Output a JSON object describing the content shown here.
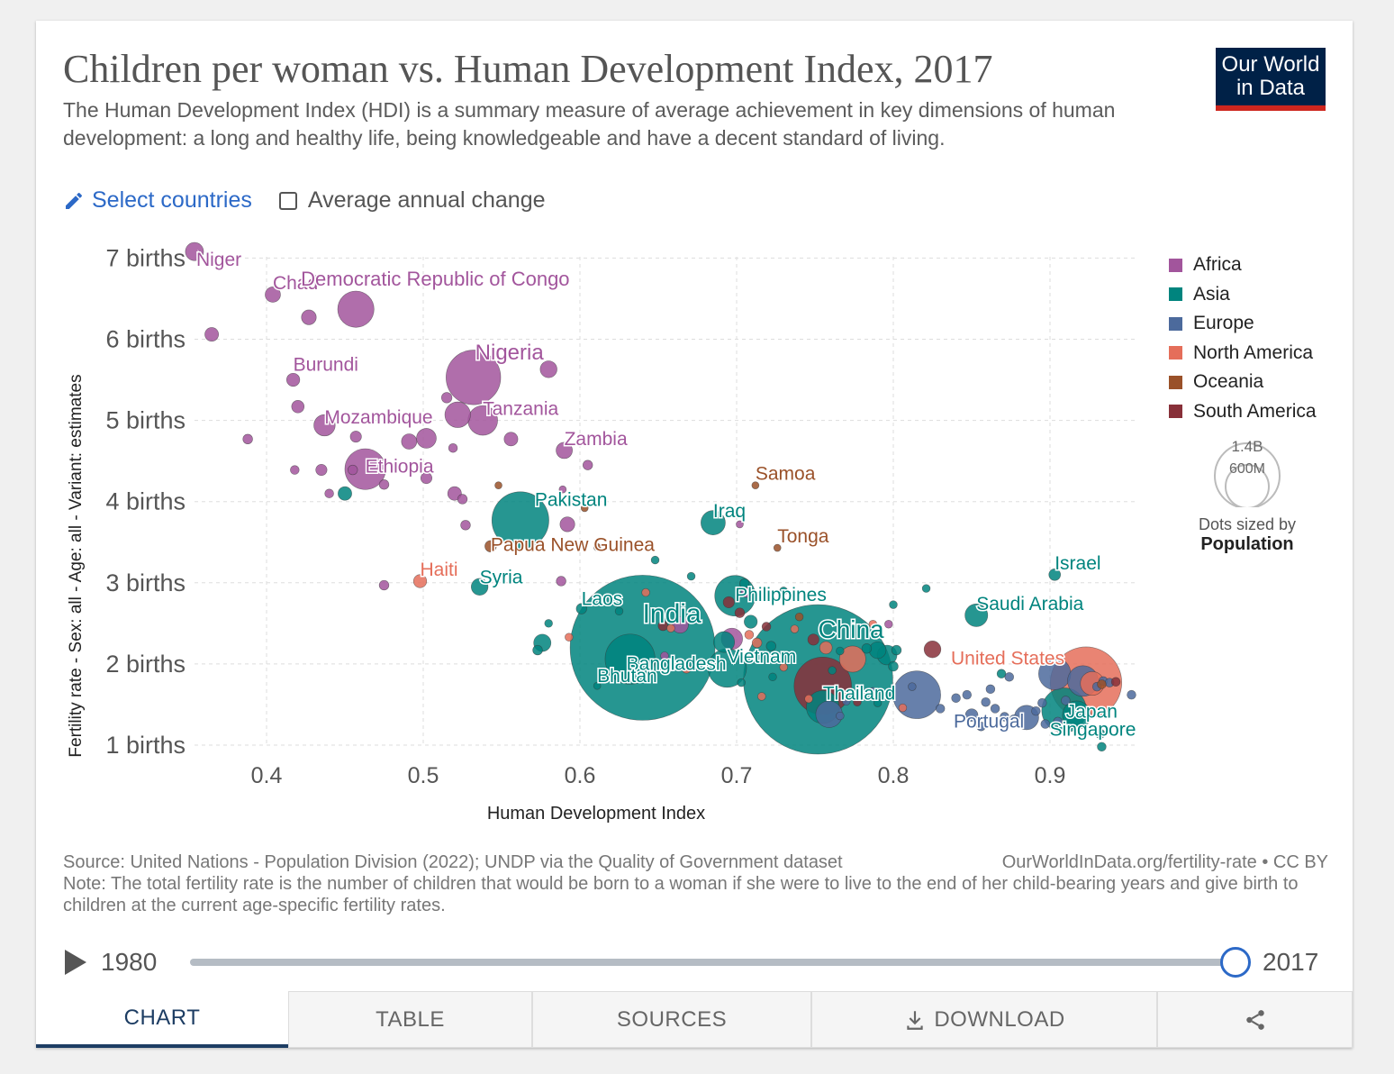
{
  "header": {
    "title": "Children per woman vs. Human Development Index, 2017",
    "subtitle": "The Human Development Index (HDI) is a summary measure of average achievement in key dimensions of human development: a long and healthy life, being knowledgeable and have a decent standard of living.",
    "logo_line1": "Our World",
    "logo_line2": "in Data"
  },
  "controls": {
    "select_countries": "Select countries",
    "average_change": "Average annual change",
    "average_change_checked": false
  },
  "colors": {
    "Africa": "#a2559c",
    "Asia": "#00847e",
    "Europe": "#4c6a9c",
    "North America": "#e56e5a",
    "Oceania": "#9a5129",
    "South America": "#883039"
  },
  "size_legend": {
    "big": "1.4B",
    "small": "600M",
    "sized_by": "Dots sized by",
    "measure": "Population"
  },
  "chart_data": {
    "type": "scatter",
    "xlabel": "Human Development Index",
    "ylabel": "Fertility rate - Sex: all - Age: all - Variant: estimates",
    "xlim": [
      0.35,
      0.96
    ],
    "ylim": [
      0.8,
      7.2
    ],
    "xticks": [
      0.4,
      0.5,
      0.6,
      0.7,
      0.8,
      0.9
    ],
    "xtick_labels": [
      "0.4",
      "0.5",
      "0.6",
      "0.7",
      "0.8",
      "0.9"
    ],
    "yticks": [
      1,
      2,
      3,
      4,
      5,
      6,
      7
    ],
    "ytick_labels": [
      "1 births",
      "2 births",
      "3 births",
      "4 births",
      "5 births",
      "6 births",
      "7 births"
    ],
    "grid": "dashed",
    "legend_position": "right",
    "series": [
      "Africa",
      "Asia",
      "Europe",
      "North America",
      "Oceania",
      "South America"
    ],
    "points": [
      {
        "label": "Niger",
        "x": 0.354,
        "y": 7.08,
        "pop": 21,
        "c": "Africa"
      },
      {
        "label": "Chad",
        "x": 0.404,
        "y": 6.55,
        "pop": 15,
        "c": "Africa"
      },
      {
        "label": "Democratic Republic of Congo",
        "x": 0.457,
        "y": 6.37,
        "pop": 84,
        "c": "Africa"
      },
      {
        "label": "Burundi",
        "x": 0.417,
        "y": 5.5,
        "pop": 11,
        "c": "Africa"
      },
      {
        "label": "Nigeria",
        "x": 0.532,
        "y": 5.53,
        "pop": 190,
        "c": "Africa"
      },
      {
        "label": "Tanzania",
        "x": 0.538,
        "y": 5.0,
        "pop": 56,
        "c": "Africa"
      },
      {
        "label": "Mozambique",
        "x": 0.437,
        "y": 4.94,
        "pop": 29,
        "c": "Africa"
      },
      {
        "label": "Ethiopia",
        "x": 0.463,
        "y": 4.4,
        "pop": 106,
        "c": "Africa"
      },
      {
        "label": "Zambia",
        "x": 0.59,
        "y": 4.63,
        "pop": 17,
        "c": "Africa"
      },
      {
        "label": "Samoa",
        "x": 0.712,
        "y": 4.2,
        "pop": 0.2,
        "c": "Oceania"
      },
      {
        "label": "Pakistan",
        "x": 0.562,
        "y": 3.77,
        "pop": 207,
        "c": "Asia"
      },
      {
        "label": "Iraq",
        "x": 0.685,
        "y": 3.74,
        "pop": 38,
        "c": "Asia"
      },
      {
        "label": "Papua New Guinea",
        "x": 0.543,
        "y": 3.45,
        "pop": 8.4,
        "c": "Oceania"
      },
      {
        "label": "Tonga",
        "x": 0.726,
        "y": 3.43,
        "pop": 0.1,
        "c": "Oceania"
      },
      {
        "label": "Israel",
        "x": 0.903,
        "y": 3.1,
        "pop": 8.7,
        "c": "Asia"
      },
      {
        "label": "Haiti",
        "x": 0.498,
        "y": 3.02,
        "pop": 11,
        "c": "North America"
      },
      {
        "label": "Syria",
        "x": 0.536,
        "y": 2.95,
        "pop": 18,
        "c": "Asia"
      },
      {
        "label": "Philippines",
        "x": 0.699,
        "y": 2.84,
        "pop": 105,
        "c": "Asia"
      },
      {
        "label": "Saudi Arabia",
        "x": 0.853,
        "y": 2.6,
        "pop": 33,
        "c": "Asia"
      },
      {
        "label": "Laos",
        "x": 0.601,
        "y": 2.68,
        "pop": 7,
        "c": "Asia"
      },
      {
        "label": "India",
        "x": 0.64,
        "y": 2.2,
        "pop": 1339,
        "c": "Asia"
      },
      {
        "label": "Bangladesh",
        "x": 0.632,
        "y": 2.06,
        "pop": 159,
        "c": "Asia"
      },
      {
        "label": "Bhutan",
        "x": 0.611,
        "y": 1.73,
        "pop": 0.8,
        "c": "Asia"
      },
      {
        "label": "Vietnam",
        "x": 0.694,
        "y": 1.95,
        "pop": 95,
        "c": "Asia"
      },
      {
        "label": "China",
        "x": 0.752,
        "y": 1.81,
        "pop": 1421,
        "c": "Asia"
      },
      {
        "label": "Thailand",
        "x": 0.755,
        "y": 1.47,
        "pop": 69,
        "c": "Asia"
      },
      {
        "label": "United States",
        "x": 0.923,
        "y": 1.77,
        "pop": 325,
        "c": "North America"
      },
      {
        "label": "Japan",
        "x": 0.909,
        "y": 1.43,
        "pop": 127,
        "c": "Asia"
      },
      {
        "label": "Portugal",
        "x": 0.85,
        "y": 1.37,
        "pop": 10,
        "c": "Europe"
      },
      {
        "label": "Singapore",
        "x": 0.932,
        "y": 1.14,
        "pop": 5.7,
        "c": "Asia"
      },
      {
        "label": "",
        "x": 0.365,
        "y": 6.06,
        "pop": 12,
        "c": "Africa"
      },
      {
        "label": "",
        "x": 0.427,
        "y": 6.27,
        "pop": 14,
        "c": "Africa"
      },
      {
        "label": "",
        "x": 0.58,
        "y": 5.63,
        "pop": 18,
        "c": "Africa"
      },
      {
        "label": "",
        "x": 0.388,
        "y": 4.77,
        "pop": 6,
        "c": "Africa"
      },
      {
        "label": "",
        "x": 0.522,
        "y": 5.07,
        "pop": 42,
        "c": "Africa"
      },
      {
        "label": "",
        "x": 0.502,
        "y": 4.78,
        "pop": 25,
        "c": "Africa"
      },
      {
        "label": "",
        "x": 0.42,
        "y": 5.17,
        "pop": 10,
        "c": "Africa"
      },
      {
        "label": "",
        "x": 0.515,
        "y": 5.28,
        "pop": 7,
        "c": "Africa"
      },
      {
        "label": "",
        "x": 0.457,
        "y": 4.8,
        "pop": 8,
        "c": "Africa"
      },
      {
        "label": "",
        "x": 0.556,
        "y": 4.77,
        "pop": 12,
        "c": "Africa"
      },
      {
        "label": "",
        "x": 0.491,
        "y": 4.74,
        "pop": 15,
        "c": "Africa"
      },
      {
        "label": "",
        "x": 0.519,
        "y": 4.66,
        "pop": 5,
        "c": "Africa"
      },
      {
        "label": "",
        "x": 0.418,
        "y": 4.39,
        "pop": 5,
        "c": "Africa"
      },
      {
        "label": "",
        "x": 0.435,
        "y": 4.39,
        "pop": 8,
        "c": "Africa"
      },
      {
        "label": "",
        "x": 0.455,
        "y": 4.39,
        "pop": 6,
        "c": "Africa"
      },
      {
        "label": "",
        "x": 0.475,
        "y": 4.21,
        "pop": 6,
        "c": "Africa"
      },
      {
        "label": "",
        "x": 0.502,
        "y": 4.29,
        "pop": 8,
        "c": "Africa"
      },
      {
        "label": "",
        "x": 0.605,
        "y": 4.45,
        "pop": 6,
        "c": "Africa"
      },
      {
        "label": "",
        "x": 0.589,
        "y": 4.15,
        "pop": 3,
        "c": "Africa"
      },
      {
        "label": "",
        "x": 0.44,
        "y": 4.1,
        "pop": 5,
        "c": "Africa"
      },
      {
        "label": "",
        "x": 0.52,
        "y": 4.1,
        "pop": 12,
        "c": "Africa"
      },
      {
        "label": "",
        "x": 0.525,
        "y": 4.03,
        "pop": 6,
        "c": "Africa"
      },
      {
        "label": "",
        "x": 0.45,
        "y": 4.1,
        "pop": 12,
        "c": "Asia"
      },
      {
        "label": "",
        "x": 0.527,
        "y": 3.71,
        "pop": 6,
        "c": "Africa"
      },
      {
        "label": "",
        "x": 0.592,
        "y": 3.72,
        "pop": 14,
        "c": "Africa"
      },
      {
        "label": "",
        "x": 0.588,
        "y": 3.02,
        "pop": 6,
        "c": "Africa"
      },
      {
        "label": "",
        "x": 0.475,
        "y": 2.97,
        "pop": 6,
        "c": "Africa"
      },
      {
        "label": "",
        "x": 0.548,
        "y": 4.2,
        "pop": 3,
        "c": "Oceania"
      },
      {
        "label": "",
        "x": 0.611,
        "y": 3.44,
        "pop": 3,
        "c": "Oceania"
      },
      {
        "label": "",
        "x": 0.603,
        "y": 3.92,
        "pop": 2,
        "c": "Oceania"
      },
      {
        "label": "",
        "x": 0.702,
        "y": 3.72,
        "pop": 2,
        "c": "Africa"
      },
      {
        "label": "",
        "x": 0.648,
        "y": 3.28,
        "pop": 4,
        "c": "Asia"
      },
      {
        "label": "",
        "x": 0.671,
        "y": 3.08,
        "pop": 4,
        "c": "Asia"
      },
      {
        "label": "",
        "x": 0.705,
        "y": 2.99,
        "pop": 6,
        "c": "Asia"
      },
      {
        "label": "",
        "x": 0.706,
        "y": 2.88,
        "pop": 6,
        "c": "Africa"
      },
      {
        "label": "",
        "x": 0.73,
        "y": 2.9,
        "pop": 4,
        "c": "Asia"
      },
      {
        "label": "",
        "x": 0.695,
        "y": 2.76,
        "pop": 8,
        "c": "South America"
      },
      {
        "label": "",
        "x": 0.702,
        "y": 2.63,
        "pop": 6,
        "c": "South America"
      },
      {
        "label": "",
        "x": 0.709,
        "y": 2.52,
        "pop": 11,
        "c": "Asia"
      },
      {
        "label": "",
        "x": 0.642,
        "y": 2.88,
        "pop": 4,
        "c": "North America"
      },
      {
        "label": "",
        "x": 0.625,
        "y": 2.65,
        "pop": 4,
        "c": "Asia"
      },
      {
        "label": "",
        "x": 0.58,
        "y": 2.5,
        "pop": 4,
        "c": "Asia"
      },
      {
        "label": "",
        "x": 0.576,
        "y": 2.26,
        "pop": 19,
        "c": "Asia"
      },
      {
        "label": "",
        "x": 0.573,
        "y": 2.17,
        "pop": 6,
        "c": "Asia"
      },
      {
        "label": "",
        "x": 0.593,
        "y": 2.33,
        "pop": 4,
        "c": "North America"
      },
      {
        "label": "",
        "x": 0.653,
        "y": 2.47,
        "pop": 6,
        "c": "South America"
      },
      {
        "label": "",
        "x": 0.658,
        "y": 2.44,
        "pop": 4,
        "c": "North America"
      },
      {
        "label": "",
        "x": 0.664,
        "y": 2.48,
        "pop": 17,
        "c": "Africa"
      },
      {
        "label": "",
        "x": 0.654,
        "y": 2.1,
        "pop": 4,
        "c": "Africa"
      },
      {
        "label": "",
        "x": 0.668,
        "y": 1.94,
        "pop": 5,
        "c": "North America"
      },
      {
        "label": "",
        "x": 0.708,
        "y": 2.36,
        "pop": 5,
        "c": "North America"
      },
      {
        "label": "",
        "x": 0.719,
        "y": 2.46,
        "pop": 5,
        "c": "South America"
      },
      {
        "label": "",
        "x": 0.692,
        "y": 2.27,
        "pop": 28,
        "c": "Asia"
      },
      {
        "label": "",
        "x": 0.697,
        "y": 2.31,
        "pop": 29,
        "c": "Africa"
      },
      {
        "label": "",
        "x": 0.713,
        "y": 2.26,
        "pop": 6,
        "c": "North America"
      },
      {
        "label": "",
        "x": 0.722,
        "y": 2.22,
        "pop": 6,
        "c": "Asia"
      },
      {
        "label": "",
        "x": 0.74,
        "y": 2.58,
        "pop": 4,
        "c": "Oceania"
      },
      {
        "label": "",
        "x": 0.737,
        "y": 2.43,
        "pop": 4,
        "c": "North America"
      },
      {
        "label": "",
        "x": 0.749,
        "y": 2.3,
        "pop": 8,
        "c": "South America"
      },
      {
        "label": "",
        "x": 0.757,
        "y": 2.2,
        "pop": 10,
        "c": "North America"
      },
      {
        "label": "",
        "x": 0.766,
        "y": 2.16,
        "pop": 4,
        "c": "Asia"
      },
      {
        "label": "",
        "x": 0.774,
        "y": 2.06,
        "pop": 44,
        "c": "North America"
      },
      {
        "label": "",
        "x": 0.783,
        "y": 2.19,
        "pop": 6,
        "c": "Asia"
      },
      {
        "label": "",
        "x": 0.787,
        "y": 2.49,
        "pop": 4,
        "c": "North America"
      },
      {
        "label": "",
        "x": 0.797,
        "y": 2.49,
        "pop": 4,
        "c": "Africa"
      },
      {
        "label": "",
        "x": 0.8,
        "y": 2.73,
        "pop": 4,
        "c": "Asia"
      },
      {
        "label": "",
        "x": 0.79,
        "y": 2.17,
        "pop": 18,
        "c": "Asia"
      },
      {
        "label": "",
        "x": 0.796,
        "y": 2.11,
        "pop": 25,
        "c": "Asia"
      },
      {
        "label": "",
        "x": 0.802,
        "y": 2.17,
        "pop": 6,
        "c": "Asia"
      },
      {
        "label": "",
        "x": 0.8,
        "y": 1.97,
        "pop": 6,
        "c": "Asia"
      },
      {
        "label": "",
        "x": 0.825,
        "y": 2.18,
        "pop": 18,
        "c": "South America"
      },
      {
        "label": "",
        "x": 0.821,
        "y": 2.93,
        "pop": 4,
        "c": "Asia"
      },
      {
        "label": "",
        "x": 0.755,
        "y": 1.73,
        "pop": 210,
        "c": "South America"
      },
      {
        "label": "",
        "x": 0.761,
        "y": 1.92,
        "pop": 4,
        "c": "Asia"
      },
      {
        "label": "",
        "x": 0.723,
        "y": 1.84,
        "pop": 4,
        "c": "Asia"
      },
      {
        "label": "",
        "x": 0.73,
        "y": 1.96,
        "pop": 4,
        "c": "North America"
      },
      {
        "label": "",
        "x": 0.716,
        "y": 1.6,
        "pop": 4,
        "c": "North America"
      },
      {
        "label": "",
        "x": 0.703,
        "y": 1.77,
        "pop": 4,
        "c": "Asia"
      },
      {
        "label": "",
        "x": 0.746,
        "y": 1.57,
        "pop": 4,
        "c": "North America"
      },
      {
        "label": "",
        "x": 0.759,
        "y": 1.38,
        "pop": 45,
        "c": "Europe"
      },
      {
        "label": "",
        "x": 0.77,
        "y": 1.54,
        "pop": 4,
        "c": "Europe"
      },
      {
        "label": "",
        "x": 0.777,
        "y": 1.53,
        "pop": 4,
        "c": "South America"
      },
      {
        "label": "",
        "x": 0.787,
        "y": 1.65,
        "pop": 6,
        "c": "Europe"
      },
      {
        "label": "",
        "x": 0.79,
        "y": 1.52,
        "pop": 4,
        "c": "Asia"
      },
      {
        "label": "",
        "x": 0.766,
        "y": 1.36,
        "pop": 4,
        "c": "Europe"
      },
      {
        "label": "",
        "x": 0.812,
        "y": 1.72,
        "pop": 4,
        "c": "Europe"
      },
      {
        "label": "",
        "x": 0.815,
        "y": 1.62,
        "pop": 145,
        "c": "Europe"
      },
      {
        "label": "",
        "x": 0.806,
        "y": 1.46,
        "pop": 4,
        "c": "North America"
      },
      {
        "label": "",
        "x": 0.83,
        "y": 1.45,
        "pop": 5,
        "c": "Europe"
      },
      {
        "label": "",
        "x": 0.84,
        "y": 1.58,
        "pop": 5,
        "c": "Europe"
      },
      {
        "label": "",
        "x": 0.847,
        "y": 1.62,
        "pop": 5,
        "c": "Europe"
      },
      {
        "label": "",
        "x": 0.859,
        "y": 1.53,
        "pop": 5,
        "c": "Europe"
      },
      {
        "label": "",
        "x": 0.865,
        "y": 1.45,
        "pop": 5,
        "c": "Europe"
      },
      {
        "label": "",
        "x": 0.871,
        "y": 1.35,
        "pop": 5,
        "c": "Europe"
      },
      {
        "label": "",
        "x": 0.877,
        "y": 1.32,
        "pop": 5,
        "c": "Europe"
      },
      {
        "label": "",
        "x": 0.862,
        "y": 1.69,
        "pop": 5,
        "c": "Europe"
      },
      {
        "label": "",
        "x": 0.869,
        "y": 1.88,
        "pop": 5,
        "c": "Asia"
      },
      {
        "label": "",
        "x": 0.874,
        "y": 1.84,
        "pop": 5,
        "c": "Europe"
      },
      {
        "label": "",
        "x": 0.856,
        "y": 1.23,
        "pop": 5,
        "c": "Europe"
      },
      {
        "label": "",
        "x": 0.885,
        "y": 1.34,
        "pop": 38,
        "c": "Europe"
      },
      {
        "label": "",
        "x": 0.891,
        "y": 1.42,
        "pop": 5,
        "c": "Europe"
      },
      {
        "label": "",
        "x": 0.895,
        "y": 1.52,
        "pop": 5,
        "c": "Europe"
      },
      {
        "label": "",
        "x": 0.903,
        "y": 1.88,
        "pop": 66,
        "c": "Europe"
      },
      {
        "label": "",
        "x": 0.91,
        "y": 1.55,
        "pop": 5,
        "c": "Europe"
      },
      {
        "label": "",
        "x": 0.897,
        "y": 1.26,
        "pop": 5,
        "c": "Europe"
      },
      {
        "label": "",
        "x": 0.905,
        "y": 1.29,
        "pop": 5,
        "c": "Europe"
      },
      {
        "label": "",
        "x": 0.917,
        "y": 1.37,
        "pop": 51,
        "c": "Asia"
      },
      {
        "label": "",
        "x": 0.921,
        "y": 1.79,
        "pop": 60,
        "c": "Europe"
      },
      {
        "label": "",
        "x": 0.927,
        "y": 1.76,
        "pop": 36,
        "c": "North America"
      },
      {
        "label": "",
        "x": 0.93,
        "y": 1.72,
        "pop": 5,
        "c": "Europe"
      },
      {
        "label": "",
        "x": 0.934,
        "y": 1.79,
        "pop": 5,
        "c": "Europe"
      },
      {
        "label": "",
        "x": 0.938,
        "y": 1.77,
        "pop": 5,
        "c": "Europe"
      },
      {
        "label": "",
        "x": 0.942,
        "y": 1.78,
        "pop": 5,
        "c": "South America"
      },
      {
        "label": "",
        "x": 0.933,
        "y": 1.75,
        "pop": 5,
        "c": "Oceania"
      },
      {
        "label": "",
        "x": 0.952,
        "y": 1.62,
        "pop": 5,
        "c": "Europe"
      },
      {
        "label": "",
        "x": 0.933,
        "y": 0.98,
        "pop": 5,
        "c": "Asia"
      }
    ]
  },
  "footer": {
    "source": "Source: United Nations - Population Division (2022); UNDP via the Quality of Government dataset",
    "url": "OurWorldInData.org/fertility-rate • CC BY",
    "note": "Note: The total fertility rate is the number of children that would be born to a woman if she were to live to the end of her child-bearing years and give birth to children at the current age-specific fertility rates."
  },
  "timeline": {
    "start": "1980",
    "end": "2017",
    "position": 1.0
  },
  "tabs": {
    "chart": "CHART",
    "table": "TABLE",
    "sources": "SOURCES",
    "download": "DOWNLOAD"
  }
}
